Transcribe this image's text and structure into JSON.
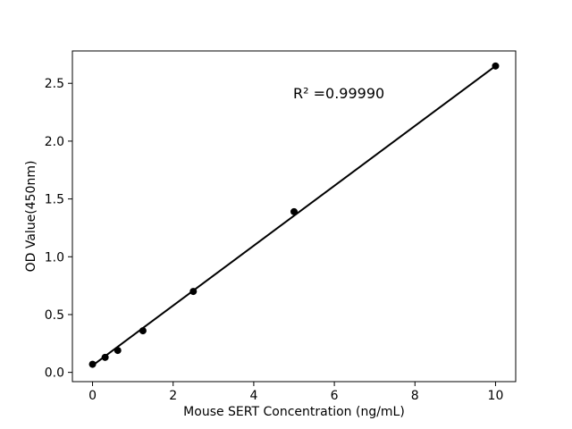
{
  "chart_data": {
    "type": "scatter",
    "title": "",
    "xlabel": "Mouse SERT Concentration (ng/mL)",
    "ylabel": "OD Value(450nm)",
    "x": [
      0,
      0.3125,
      0.625,
      1.25,
      2.5,
      5,
      10
    ],
    "y": [
      0.07,
      0.13,
      0.19,
      0.36,
      0.7,
      1.39,
      2.65
    ],
    "fit_line": {
      "x": [
        0,
        10
      ],
      "y": [
        0.06,
        2.65
      ]
    },
    "annotation": {
      "text": "R² =0.99990",
      "r_squared": 0.9999
    },
    "xlim": [
      -0.5,
      10.5
    ],
    "ylim": [
      -0.08,
      2.78
    ],
    "xticks": [
      0,
      2,
      4,
      6,
      8,
      10
    ],
    "xtick_labels": [
      "0",
      "2",
      "4",
      "6",
      "8",
      "10"
    ],
    "yticks": [
      0.0,
      0.5,
      1.0,
      1.5,
      2.0,
      2.5
    ],
    "ytick_labels": [
      "0.0",
      "0.5",
      "1.0",
      "1.5",
      "2.0",
      "2.5"
    ],
    "grid": false,
    "legend": "none",
    "marker": "filled-circle",
    "marker_color": "#000000",
    "line_color": "#000000",
    "axis_color": "#000000",
    "background_color": "#ffffff"
  }
}
